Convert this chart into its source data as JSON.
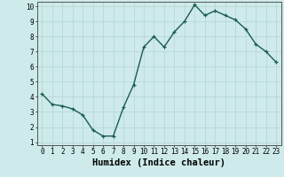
{
  "x": [
    0,
    1,
    2,
    3,
    4,
    5,
    6,
    7,
    8,
    9,
    10,
    11,
    12,
    13,
    14,
    15,
    16,
    17,
    18,
    19,
    20,
    21,
    22,
    23
  ],
  "y": [
    4.2,
    3.5,
    3.4,
    3.2,
    2.8,
    1.8,
    1.4,
    1.4,
    3.3,
    4.8,
    7.3,
    8.0,
    7.3,
    8.3,
    9.0,
    10.1,
    9.4,
    9.7,
    9.4,
    9.1,
    8.5,
    7.5,
    7.0,
    6.3
  ],
  "xlabel": "Humidex (Indice chaleur)",
  "xlim": [
    -0.5,
    23.5
  ],
  "ylim": [
    0.8,
    10.3
  ],
  "yticks": [
    1,
    2,
    3,
    4,
    5,
    6,
    7,
    8,
    9,
    10
  ],
  "xticks": [
    0,
    1,
    2,
    3,
    4,
    5,
    6,
    7,
    8,
    9,
    10,
    11,
    12,
    13,
    14,
    15,
    16,
    17,
    18,
    19,
    20,
    21,
    22,
    23
  ],
  "line_color": "#1a5c52",
  "marker": "+",
  "bg_color": "#ceeaea",
  "grid_color": "#b8d8d8",
  "tick_label_fontsize": 5.5,
  "xlabel_fontsize": 7.5,
  "marker_size": 3.5,
  "line_width": 1.0,
  "spine_color": "#555555"
}
